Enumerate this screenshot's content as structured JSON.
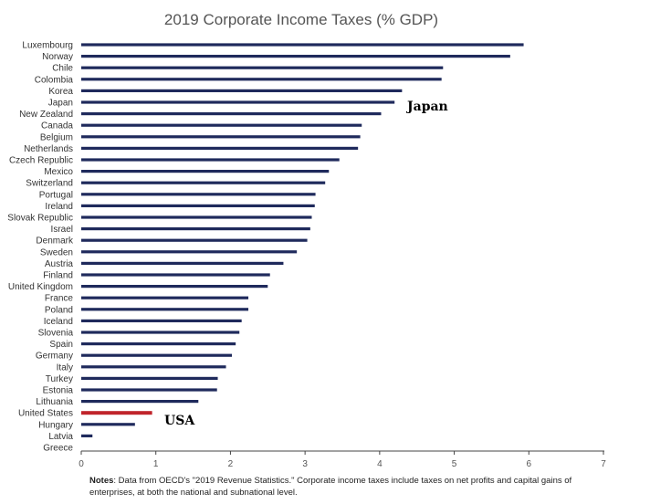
{
  "chart_data": {
    "type": "bar",
    "orientation": "horizontal",
    "title": "2019 Corporate Income Taxes (% GDP)",
    "xlabel": "",
    "ylabel": "",
    "xlim": [
      0,
      7
    ],
    "xticks": [
      "0",
      "1",
      "2",
      "3",
      "4",
      "5",
      "6",
      "7"
    ],
    "grid": false,
    "categories": [
      "Luxembourg",
      "Norway",
      "Chile",
      "Colombia",
      "Korea",
      "Japan",
      "New Zealand",
      "Canada",
      "Belgium",
      "Netherlands",
      "Czech Republic",
      "Mexico",
      "Switzerland",
      "Portugal",
      "Ireland",
      "Slovak Republic",
      "Israel",
      "Denmark",
      "Sweden",
      "Austria",
      "Finland",
      "United Kingdom",
      "France",
      "Poland",
      "Iceland",
      "Slovenia",
      "Spain",
      "Germany",
      "Italy",
      "Turkey",
      "Estonia",
      "Lithuania",
      "United States",
      "Hungary",
      "Latvia",
      "Greece"
    ],
    "values": [
      5.93,
      5.75,
      4.85,
      4.83,
      4.3,
      4.2,
      4.02,
      3.76,
      3.74,
      3.71,
      3.46,
      3.32,
      3.27,
      3.14,
      3.13,
      3.09,
      3.07,
      3.03,
      2.89,
      2.71,
      2.53,
      2.5,
      2.24,
      2.24,
      2.15,
      2.12,
      2.07,
      2.02,
      1.94,
      1.83,
      1.82,
      1.57,
      0.95,
      0.72,
      0.15,
      0.0
    ],
    "colors": {
      "default": "#1f2a5c",
      "highlight": "#c0242b"
    },
    "highlight": "United States",
    "annotations": [
      {
        "text": "Japan",
        "category": "Japan"
      },
      {
        "text": "USA",
        "category": "United States"
      }
    ]
  },
  "notes": {
    "label": "Notes",
    "text": ": Data from OECD's \"2019 Revenue Statistics.\" Corporate income taxes include taxes on net profits and capital gains of enterprises, at both the national and subnational level."
  }
}
